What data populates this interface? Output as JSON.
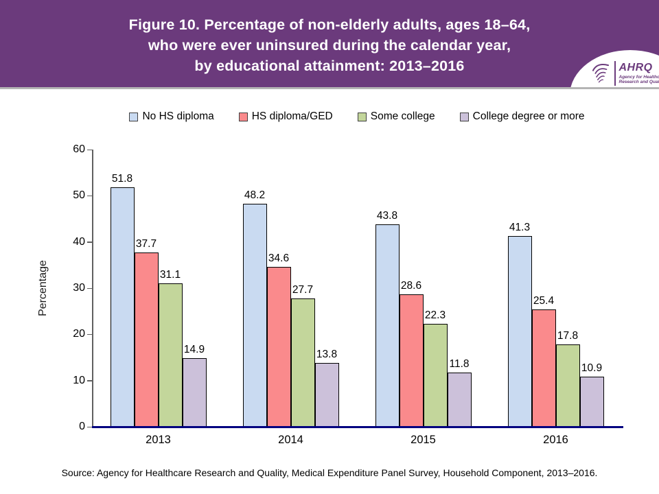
{
  "header": {
    "title_lines": [
      "Figure 10. Percentage of non-elderly adults, ages 18–64,",
      "who were ever uninsured during the calendar year,",
      "by educational attainment: 2013–2016"
    ],
    "logo": {
      "org_abbr": "AHRQ",
      "tagline_line1": "Agency for Healthcare",
      "tagline_line2": "Research and Quality"
    }
  },
  "chart_data": {
    "type": "bar",
    "title": "Figure 10. Percentage of non-elderly adults, ages 18–64, who were ever uninsured during the calendar year, by educational attainment: 2013–2016",
    "categories": [
      "2013",
      "2014",
      "2015",
      "2016"
    ],
    "series": [
      {
        "name": "No HS diploma",
        "color": "#C9DAF1",
        "values": [
          51.8,
          48.2,
          43.8,
          41.3
        ]
      },
      {
        "name": "HS diploma/GED",
        "color": "#FA8A8C",
        "values": [
          37.7,
          34.6,
          28.6,
          25.4
        ]
      },
      {
        "name": "Some college",
        "color": "#C3D69B",
        "values": [
          31.1,
          27.7,
          22.3,
          17.8
        ]
      },
      {
        "name": "College degree or more",
        "color": "#CCC1DA",
        "values": [
          14.9,
          13.8,
          11.8,
          10.9
        ]
      }
    ],
    "xlabel": "",
    "ylabel": "Percentage",
    "ylim": [
      0,
      60
    ],
    "yticks": [
      0,
      10,
      20,
      30,
      40,
      50,
      60
    ],
    "grid": false,
    "legend_position": "top",
    "value_labels_shown": true,
    "bar_border_color": "#000000",
    "baseline_color": "#000080"
  },
  "footer": {
    "source": "Source: Agency for Healthcare Research and Quality, Medical Expenditure Panel Survey, Household Component, 2013–2016."
  },
  "colors": {
    "banner_background": "#6B3A7C",
    "banner_text": "#FFFFFF",
    "axis_line": "#5F5F5F"
  }
}
